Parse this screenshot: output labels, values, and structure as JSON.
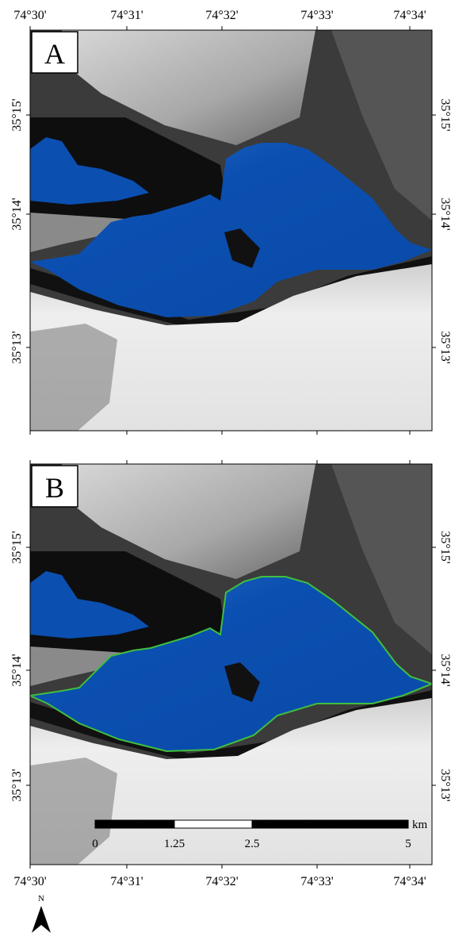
{
  "panels": [
    {
      "label": "A",
      "top_ticks": [
        "74°30'",
        "74°31'",
        "74°32'",
        "74°33'",
        "74°34'"
      ],
      "left_ticks": [
        "35°15'",
        "35°14'",
        "35°13'"
      ],
      "right_ticks": [
        "35°15'",
        "35°14'",
        "35°13'"
      ]
    },
    {
      "label": "B",
      "bottom_ticks": [
        "74°30'",
        "74°31'",
        "74°32'",
        "74°33'",
        "74°34'"
      ],
      "left_ticks": [
        "35°15'",
        "35°14'",
        "35°13'"
      ],
      "right_ticks": [
        "35°15'",
        "35°14'",
        "35°13'"
      ]
    }
  ],
  "north_arrow": {
    "label": "N"
  },
  "scale_bar": {
    "labels": [
      "0",
      "1.25",
      "2.5",
      "5"
    ],
    "unit": "km"
  }
}
